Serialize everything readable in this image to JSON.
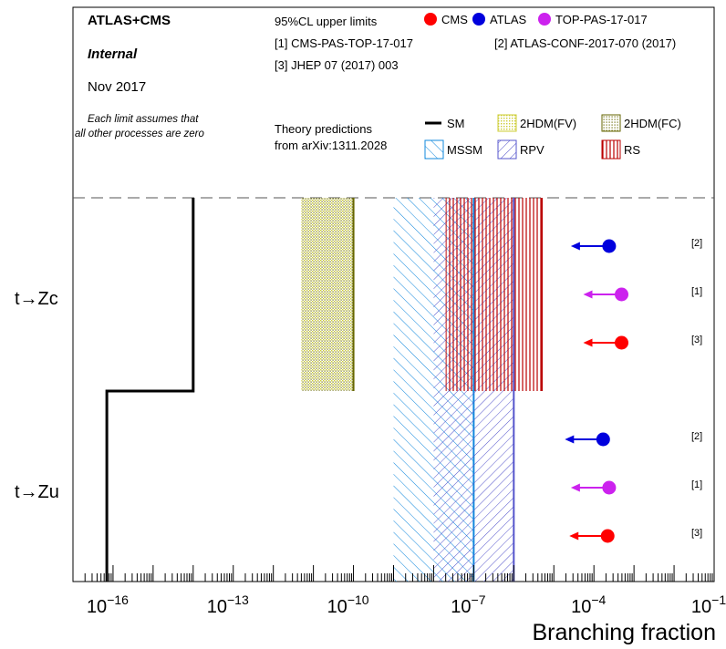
{
  "header": {
    "experiment": "ATLAS+CMS",
    "status": "Internal",
    "date": "Nov 2017",
    "note_line1": "Each limit assumes that",
    "note_line2": "all other processes are zero",
    "limits_title": "95%CL upper limits",
    "ref1": "[1] CMS-PAS-TOP-17-017",
    "ref2": "[2] ATLAS-CONF-2017-070 (2017)",
    "ref3": "[3] JHEP 07 (2017) 003",
    "theory_line1": "Theory predictions",
    "theory_line2": "from arXiv:1311.2028"
  },
  "colors": {
    "cms": "#ff0000",
    "atlas": "#0000dd",
    "top_pas": "#cc22ee",
    "sm": "#000000",
    "hdm_fv": "#cccc33",
    "hdm_fc": "#666600",
    "mssm": "#1188dd",
    "rpv": "#5555cc",
    "rs": "#bb0000"
  },
  "chart_data": {
    "type": "limit-plot",
    "xlabel": "Branching fraction",
    "x_scale": "log",
    "xlim": [
      1e-17,
      0.1
    ],
    "x_tick_labels": [
      "10",
      "10",
      "10",
      "10",
      "10",
      "10"
    ],
    "x_tick_exponents": [
      "−16",
      "−13",
      "−10",
      "−7",
      "−4",
      "−1"
    ],
    "x_tick_values": [
      1e-16,
      1e-13,
      1e-10,
      1e-07,
      0.0001,
      0.1
    ],
    "categories": [
      "t→Zc",
      "t→Zu"
    ],
    "legend_experiments": [
      {
        "name": "CMS",
        "color_key": "cms"
      },
      {
        "name": "ATLAS",
        "color_key": "atlas"
      },
      {
        "name": "TOP-PAS-17-017",
        "color_key": "top_pas"
      }
    ],
    "legend_theory": [
      {
        "name": "SM",
        "style": "line",
        "color_key": "sm"
      },
      {
        "name": "2HDM(FV)",
        "style": "dots",
        "color_key": "hdm_fv"
      },
      {
        "name": "2HDM(FC)",
        "style": "dots",
        "color_key": "hdm_fc"
      },
      {
        "name": "MSSM",
        "style": "hatch",
        "color_key": "mssm"
      },
      {
        "name": "RPV",
        "style": "hatch",
        "color_key": "rpv"
      },
      {
        "name": "RS",
        "style": "vlines",
        "color_key": "rs"
      }
    ],
    "limits": [
      {
        "category": "t→Zc",
        "experiment": "ATLAS",
        "ref": "[2]",
        "value": 0.00024
      },
      {
        "category": "t→Zc",
        "experiment": "TOP-PAS-17-017",
        "ref": "[1]",
        "value": 0.00049
      },
      {
        "category": "t→Zc",
        "experiment": "CMS",
        "ref": "[3]",
        "value": 0.00049
      },
      {
        "category": "t→Zu",
        "experiment": "ATLAS",
        "ref": "[2]",
        "value": 0.00017
      },
      {
        "category": "t→Zu",
        "experiment": "TOP-PAS-17-017",
        "ref": "[1]",
        "value": 0.00024
      },
      {
        "category": "t→Zu",
        "experiment": "CMS",
        "ref": "[3]",
        "value": 0.00022
      }
    ],
    "theory": [
      {
        "model": "SM",
        "category": "t→Zc",
        "value": 1e-14
      },
      {
        "model": "SM",
        "category": "t→Zu",
        "value": 7e-17
      },
      {
        "model": "2HDM(FV)",
        "category": "t→Zc",
        "range": [
          5e-12,
          1e-10
        ]
      },
      {
        "model": "2HDM(FC)",
        "category": "t→Zc",
        "range": [
          5e-12,
          1e-10
        ]
      },
      {
        "model": "MSSM",
        "category": "both",
        "range": [
          1e-09,
          1e-07
        ]
      },
      {
        "model": "RPV",
        "category": "both",
        "range": [
          1e-08,
          1e-06
        ]
      },
      {
        "model": "RS",
        "category": "t→Zc",
        "range": [
          2e-08,
          5e-06
        ]
      }
    ]
  }
}
